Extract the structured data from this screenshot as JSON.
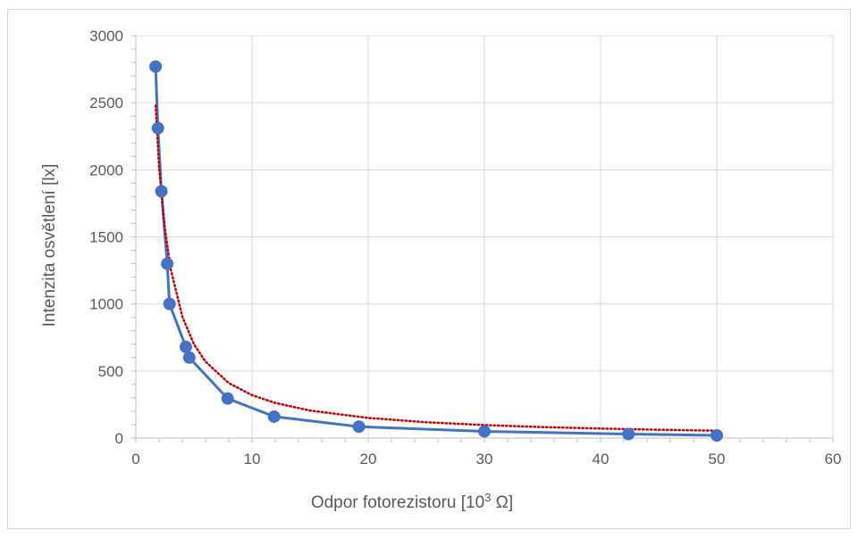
{
  "chart_data": {
    "type": "scatter",
    "title": "",
    "xlabel_main": "Odpor fotorezistoru [10",
    "xlabel_sup": "3",
    "xlabel_end": " Ω]",
    "ylabel": "Intenzita osvětlení [lx]",
    "xlim": [
      0,
      60
    ],
    "ylim": [
      0,
      3000
    ],
    "x_major_ticks": [
      0,
      10,
      20,
      30,
      40,
      50,
      60
    ],
    "y_major_ticks": [
      0,
      500,
      1000,
      1500,
      2000,
      2500,
      3000
    ],
    "x_minor_step": 2,
    "y_minor_step": 100,
    "grid": true,
    "series": [
      {
        "style": "line-markers",
        "color": "#4472C4",
        "x": [
          1.7,
          1.9,
          2.2,
          2.7,
          2.9,
          4.3,
          4.6,
          7.9,
          11.9,
          19.2,
          30.0,
          42.4,
          50.0
        ],
        "y": [
          2770,
          2310,
          1840,
          1300,
          1000,
          680,
          600,
          295,
          160,
          85,
          50,
          30,
          20
        ]
      },
      {
        "style": "dotted-trendline",
        "color": "#C00000",
        "x": [
          1.7,
          2.0,
          2.5,
          3.0,
          4.0,
          5.0,
          6.0,
          8.0,
          10.0,
          12.0,
          15.0,
          20.0,
          25.0,
          30.0,
          35.0,
          40.0,
          45.0,
          50.0
        ],
        "y": [
          2480,
          2020,
          1560,
          1260,
          905,
          700,
          570,
          410,
          320,
          262,
          205,
          150,
          118,
          97,
          82,
          71,
          62,
          55
        ]
      }
    ]
  }
}
